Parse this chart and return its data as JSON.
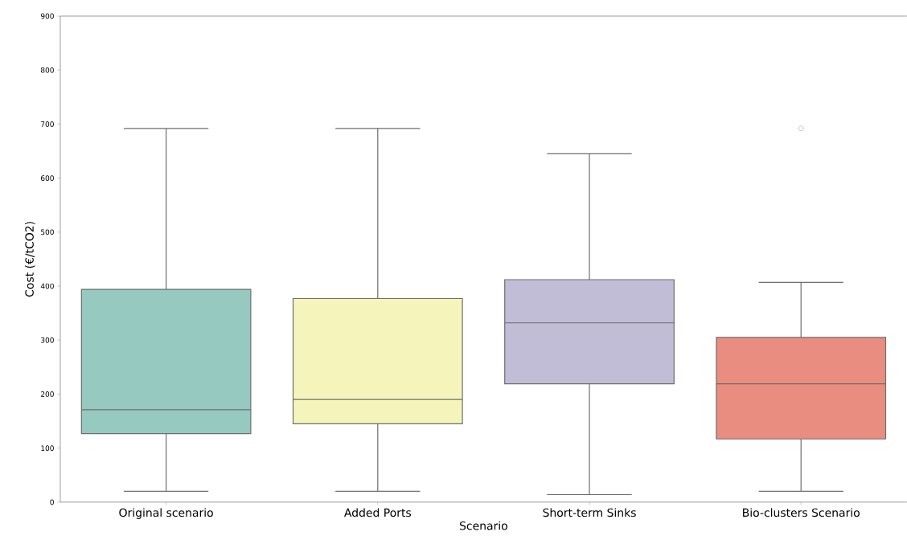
{
  "chart_data": {
    "type": "box",
    "xlabel": "Scenario",
    "ylabel": "Cost (€/tCO2)",
    "categories": [
      "Original scenario",
      "Added Ports",
      "Short-term Sinks",
      "Bio-clusters Scenario"
    ],
    "colors": [
      "#96c9c0",
      "#f5f5bb",
      "#c1bdd6",
      "#e98d80"
    ],
    "boxes": [
      {
        "low": 20,
        "q1": 127,
        "median": 171,
        "q3": 394,
        "high": 692
      },
      {
        "low": 20,
        "q1": 145,
        "median": 190,
        "q3": 377,
        "high": 692
      },
      {
        "low": 14,
        "q1": 219,
        "median": 332,
        "q3": 412,
        "high": 645
      },
      {
        "low": 20,
        "q1": 117,
        "median": 219,
        "q3": 305,
        "high": 407,
        "outliers": [
          692
        ]
      }
    ],
    "ylim": [
      0,
      900
    ],
    "yticks": [
      0,
      100,
      200,
      300,
      400,
      500,
      600,
      700,
      800,
      900
    ],
    "grid": false
  }
}
